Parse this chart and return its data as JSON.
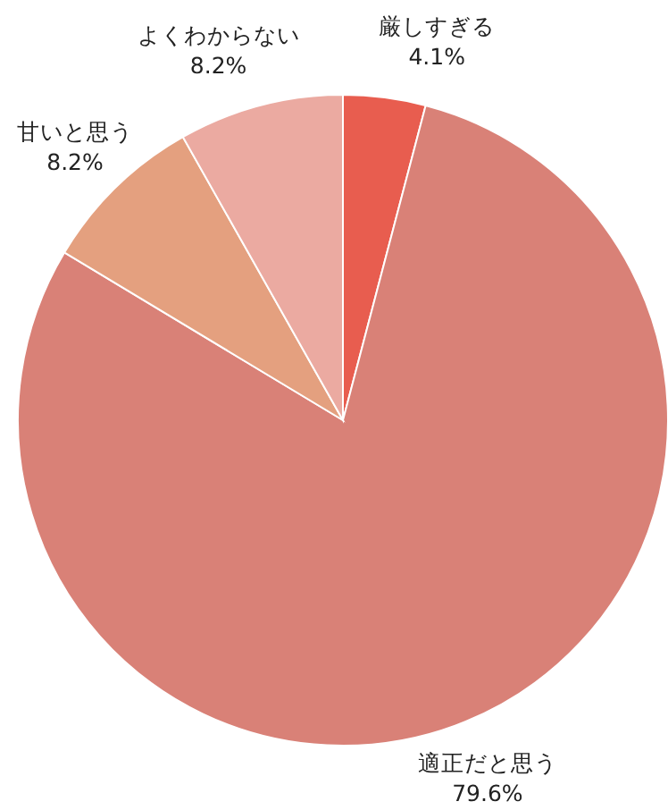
{
  "chart_data": {
    "type": "pie",
    "categories": [
      "厳しすぎる",
      "適正だと思う",
      "甘いと思う",
      "よくわからない"
    ],
    "values": [
      4.1,
      79.6,
      8.2,
      8.2
    ],
    "colors": [
      "#e85d4f",
      "#d98177",
      "#e4a07f",
      "#ebaaa1"
    ],
    "value_labels": [
      "4.1%",
      "79.6%",
      "8.2%",
      "8.2%"
    ]
  }
}
